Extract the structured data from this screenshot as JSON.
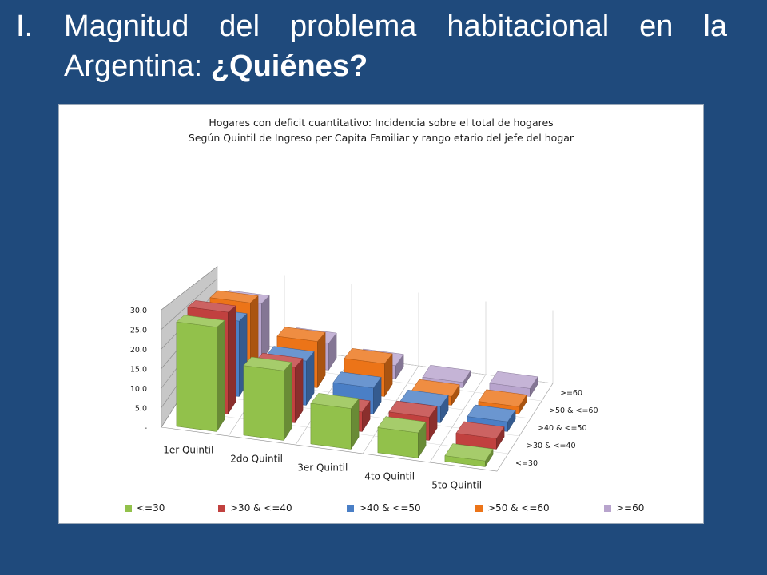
{
  "slide": {
    "number": "I.",
    "title_words_line1": [
      "Magnitud",
      "del",
      "problema",
      "habitacional",
      "en",
      "la"
    ],
    "title_line2_normal": "Argentina: ",
    "title_line2_bold": "¿Quiénes?"
  },
  "colors": {
    "background": "#1f4a7c",
    "series": [
      "#92c14b",
      "#c1413f",
      "#4a7fc6",
      "#ec7418",
      "#b8a4cd"
    ]
  },
  "chart_data": {
    "type": "bar",
    "subtype": "3d-column",
    "title": "Hogares con deficit cuantitativo: Incidencia sobre el total de hogares",
    "subtitle": "Según Quintil de Ingreso per Capita Familiar  y rango etario del jefe del hogar",
    "categories": [
      "1er Quintil",
      "2do Quintil",
      "3er Quintil",
      "4to Quintil",
      "5to Quintil"
    ],
    "depth_labels": [
      "<=30",
      ">30 & <=40",
      ">40 & <=50",
      ">50 & <=60",
      ">=60"
    ],
    "y_ticks": [
      "-",
      "5.0",
      "10.0",
      "15.0",
      "20.0",
      "25.0",
      "30.0"
    ],
    "ylim": [
      0,
      30
    ],
    "series": [
      {
        "name": "<=30",
        "values": [
          27.0,
          18.0,
          10.5,
          6.5,
          1.5
        ]
      },
      {
        "name": ">30 & <=40",
        "values": [
          28.5,
          15.5,
          5.5,
          6.5,
          3.0
        ]
      },
      {
        "name": ">40 & <=50",
        "values": [
          23.0,
          13.5,
          8.0,
          5.0,
          3.0
        ]
      },
      {
        "name": ">50 & <=60",
        "values": [
          25.5,
          15.5,
          11.0,
          3.0,
          2.5
        ]
      },
      {
        "name": ">=60",
        "values": [
          21.5,
          10.0,
          5.0,
          2.0,
          3.0
        ]
      }
    ],
    "legend_labels": [
      "<=30",
      ">30 & <=40",
      ">40 & <=50",
      ">50 & <=60",
      ">=60"
    ],
    "legend_position": "bottom",
    "grid": true
  }
}
